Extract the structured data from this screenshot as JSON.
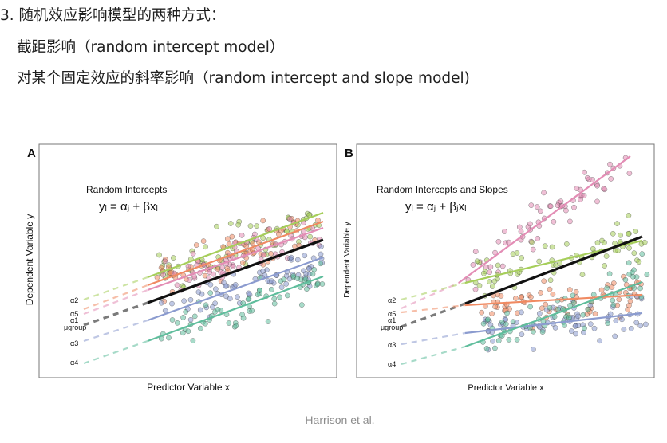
{
  "heading": "3. 随机效应影响模型的两种方式：",
  "bullet1": "截距影响（random intercept model）",
  "bullet2": "对某个固定效应的斜率影响（random intercept and slope model)",
  "caption": "Harrison et al.",
  "colors": {
    "green": "#a6ce5a",
    "pink": "#e38db5",
    "orange": "#f08a62",
    "black": "#111111",
    "purple": "#8b9bcf",
    "teal": "#5fbd9c",
    "gray": "#8a8a8a"
  },
  "panels": [
    {
      "letter": "A",
      "title": "Random Intercepts",
      "equation": "yᵢ = αⱼ + βxᵢ",
      "xlabel": "Predictor Variable x",
      "ylabel": "Dependent Variable y",
      "labels": [
        "α2",
        "α5",
        "α1",
        "μgroup",
        "α3",
        "α4"
      ]
    },
    {
      "letter": "B",
      "title": "Random Intercepts and Slopes",
      "equation": "yᵢ = αⱼ + βⱼxᵢ",
      "xlabel": "Predictor Variable x",
      "ylabel": "Dependent Variable y",
      "labels": [
        "α2",
        "α5",
        "α1",
        "μgroup",
        "α3",
        "α4"
      ]
    }
  ]
}
